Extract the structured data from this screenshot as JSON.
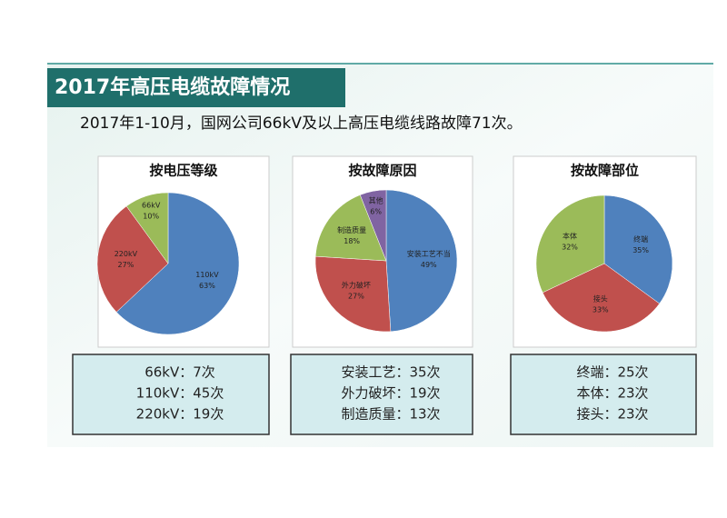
{
  "header": {
    "title": "2017年高压电缆故障情况",
    "subtitle": "2017年1-10月，国网公司66kV及以上高压电缆线路故障71次。"
  },
  "chart_data": [
    {
      "type": "pie",
      "title": "按电压等级",
      "categories": [
        "110kV",
        "220kV",
        "66kV"
      ],
      "values": [
        63,
        27,
        10
      ],
      "value_labels": [
        "63%",
        "27%",
        "10%"
      ],
      "colors": [
        "#4f81bd",
        "#c0504d",
        "#9bbb59"
      ]
    },
    {
      "type": "pie",
      "title": "按故障原因",
      "categories": [
        "安装工艺不当",
        "外力破坏",
        "制造质量",
        "其他"
      ],
      "values": [
        49,
        27,
        18,
        6
      ],
      "value_labels": [
        "49%",
        "27%",
        "18%",
        "6%"
      ],
      "colors": [
        "#4f81bd",
        "#c0504d",
        "#9bbb59",
        "#8064a2"
      ]
    },
    {
      "type": "pie",
      "title": "按故障部位",
      "categories": [
        "终端",
        "接头",
        "本体"
      ],
      "values": [
        35,
        33,
        32
      ],
      "value_labels": [
        "35%",
        "33%",
        "32%"
      ],
      "colors": [
        "#4f81bd",
        "#c0504d",
        "#9bbb59"
      ]
    }
  ],
  "tables": [
    [
      "66kV：7次",
      "110kV：45次",
      "220kV：19次"
    ],
    [
      "安装工艺：35次",
      "外力破坏：19次",
      "制造质量：13次"
    ],
    [
      "终端：25次",
      "本体：23次",
      "接头：23次"
    ]
  ]
}
